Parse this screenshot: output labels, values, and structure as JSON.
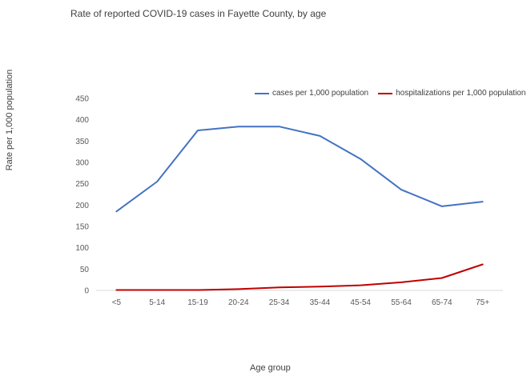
{
  "chart_data": {
    "type": "line",
    "title": "Rate of reported COVID-19 cases in Fayette County, by age",
    "xlabel": "Age group",
    "ylabel": "Rate per 1,000 population",
    "ylim": [
      0,
      450
    ],
    "yticks": [
      0,
      50,
      100,
      150,
      200,
      250,
      300,
      350,
      400,
      450
    ],
    "grid": false,
    "legend_position": "top-right",
    "categories": [
      "<5",
      "5-14",
      "15-19",
      "20-24",
      "25-34",
      "35-44",
      "45-54",
      "55-64",
      "65-74",
      "75+"
    ],
    "series": [
      {
        "name": "cases per 1,000 population",
        "color": "#4472C4",
        "values": [
          185,
          255,
          375,
          384,
          384,
          362,
          308,
          236,
          197,
          208
        ]
      },
      {
        "name": "hospitalizations per 1,000 population",
        "color": "#C00000",
        "values": [
          1,
          1,
          1,
          3,
          7,
          9,
          12,
          19,
          29,
          61
        ]
      }
    ]
  }
}
